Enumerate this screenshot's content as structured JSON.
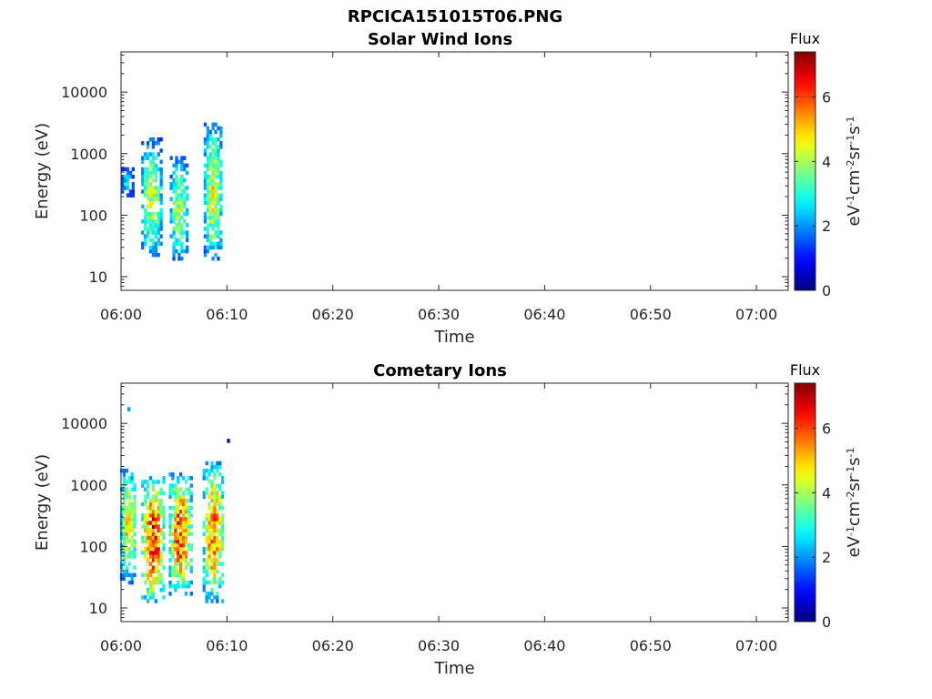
{
  "figure": {
    "title": "RPCICA151015T06.PNG"
  },
  "colors": {
    "axis": "#262626",
    "colormap": "jet"
  },
  "chart_data": [
    {
      "type": "heatmap",
      "title": "Solar Wind Ions",
      "xlabel": "Time",
      "ylabel": "Energy (eV)",
      "y_scale": "log",
      "xlim": [
        "06:00",
        "07:03"
      ],
      "ylim": [
        6,
        45000
      ],
      "x_ticks": [
        "06:00",
        "06:10",
        "06:20",
        "06:30",
        "06:40",
        "06:50",
        "07:00"
      ],
      "y_ticks": [
        "10",
        "100",
        "1000",
        "10000"
      ],
      "y_tick_values": [
        10,
        100,
        1000,
        10000
      ],
      "grid": false,
      "colorbar": {
        "title": "Flux",
        "label_parts": [
          "eV",
          "-1",
          "cm",
          "-2",
          "sr",
          "-1",
          "s",
          "-1"
        ],
        "range": [
          0,
          7.4
        ],
        "ticks": [
          "0",
          "2",
          "4",
          "6"
        ],
        "tick_values": [
          0,
          2,
          4,
          6
        ]
      },
      "blobs": [
        {
          "t_center_min": 0.5,
          "t_halfwidth_min": 0.5,
          "e_low_eV": 200,
          "e_high_eV": 600,
          "peak_flux": 2.8
        },
        {
          "t_center_min": 2.8,
          "t_halfwidth_min": 0.9,
          "e_low_eV": 20,
          "e_high_eV": 1800,
          "peak_flux": 4.2
        },
        {
          "t_center_min": 5.4,
          "t_halfwidth_min": 0.8,
          "e_low_eV": 18,
          "e_high_eV": 900,
          "peak_flux": 4.0
        },
        {
          "t_center_min": 8.6,
          "t_halfwidth_min": 0.8,
          "e_low_eV": 18,
          "e_high_eV": 3200,
          "peak_flux": 4.5
        }
      ]
    },
    {
      "type": "heatmap",
      "title": "Cometary Ions",
      "xlabel": "Time",
      "ylabel": "Energy (eV)",
      "y_scale": "log",
      "xlim": [
        "06:00",
        "07:03"
      ],
      "ylim": [
        6,
        45000
      ],
      "x_ticks": [
        "06:00",
        "06:10",
        "06:20",
        "06:30",
        "06:40",
        "06:50",
        "07:00"
      ],
      "y_ticks": [
        "10",
        "100",
        "1000",
        "10000"
      ],
      "y_tick_values": [
        10,
        100,
        1000,
        10000
      ],
      "grid": false,
      "colorbar": {
        "title": "Flux",
        "label_parts": [
          "eV",
          "-1",
          "cm",
          "-2",
          "sr",
          "-1",
          "s",
          "-1"
        ],
        "range": [
          0,
          7.4
        ],
        "ticks": [
          "0",
          "2",
          "4",
          "6"
        ],
        "tick_values": [
          0,
          2,
          4,
          6
        ]
      },
      "blobs": [
        {
          "t_center_min": 0.6,
          "t_halfwidth_min": 0.7,
          "e_low_eV": 25,
          "e_high_eV": 1800,
          "peak_flux": 4.8
        },
        {
          "t_center_min": 2.9,
          "t_halfwidth_min": 1.0,
          "e_low_eV": 12,
          "e_high_eV": 1400,
          "peak_flux": 6.3
        },
        {
          "t_center_min": 5.5,
          "t_halfwidth_min": 1.0,
          "e_low_eV": 15,
          "e_high_eV": 1500,
          "peak_flux": 6.0
        },
        {
          "t_center_min": 8.6,
          "t_halfwidth_min": 0.9,
          "e_low_eV": 12,
          "e_high_eV": 2500,
          "peak_flux": 5.6
        }
      ],
      "isolated_points": [
        {
          "t_min": 0.6,
          "e_eV": 17000,
          "flux": 2.0
        },
        {
          "t_min": 10.0,
          "e_eV": 5200,
          "flux": 0.5
        }
      ]
    }
  ]
}
